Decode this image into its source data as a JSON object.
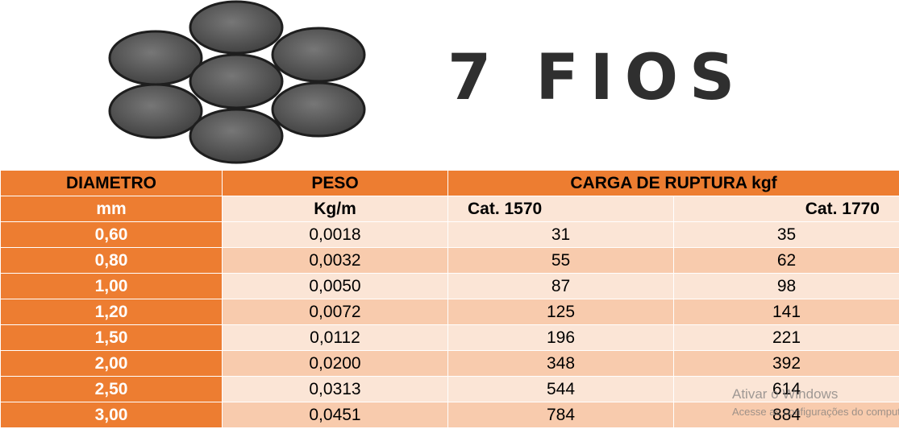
{
  "header": {
    "title": "7 FIOS"
  },
  "table": {
    "header_row_1": [
      "DIAMETRO",
      "PESO",
      "CARGA DE RUPTURA  kgf"
    ],
    "header_row_2": [
      "mm",
      "Kg/m",
      "Cat. 1570",
      "Cat. 1770"
    ],
    "rows": [
      [
        "0,60",
        "0,0018",
        "31",
        "35"
      ],
      [
        "0,80",
        "0,0032",
        "55",
        "62"
      ],
      [
        "1,00",
        "0,0050",
        "87",
        "98"
      ],
      [
        "1,20",
        "0,0072",
        "125",
        "141"
      ],
      [
        "1,50",
        "0,0112",
        "196",
        "221"
      ],
      [
        "2,00",
        "0,0200",
        "348",
        "392"
      ],
      [
        "2,50",
        "0,0313",
        "544",
        "614"
      ],
      [
        "3,00",
        "0,0451",
        "784",
        "884"
      ]
    ]
  },
  "watermark": {
    "title": "Ativar o Windows",
    "subtitle": "Acesse as configurações do computador para ativar o Windows."
  }
}
